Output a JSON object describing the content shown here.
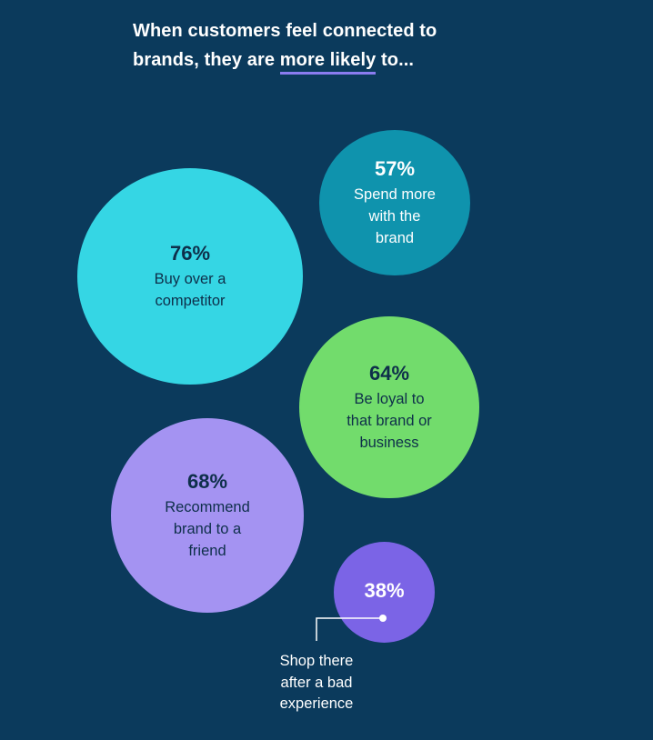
{
  "title": {
    "line1": "When customers feel connected to",
    "line2_prefix": "brands, they are ",
    "line2_highlight": "more likely",
    "line2_suffix": " to..."
  },
  "colors": {
    "background": "#0b3a5c",
    "buy": "#35d6e4",
    "spend": "#0f93ad",
    "loyal": "#72dc6c",
    "recommend": "#a493f2",
    "shop": "#7b64e6",
    "highlight_underline": "#8b7cf0"
  },
  "chart_data": {
    "type": "bubble",
    "title": "When customers feel connected to brands, they are more likely to...",
    "unit": "%",
    "items": [
      {
        "label": "Buy over a competitor",
        "value": 76,
        "value_text": "76%"
      },
      {
        "label": "Spend more with the brand",
        "value": 57,
        "value_text": "57%"
      },
      {
        "label": "Be loyal to that brand or business",
        "value": 64,
        "value_text": "64%"
      },
      {
        "label": "Recommend brand to a friend",
        "value": 68,
        "value_text": "68%"
      },
      {
        "label": "Shop there after a bad experience",
        "value": 38,
        "value_text": "38%"
      }
    ]
  },
  "bubbles": {
    "buy": {
      "value": "76%",
      "label": "Buy over a\ncompetitor"
    },
    "spend": {
      "value": "57%",
      "label": "Spend more\nwith the\nbrand"
    },
    "loyal": {
      "value": "64%",
      "label": "Be loyal to\nthat brand or\nbusiness"
    },
    "recommend": {
      "value": "68%",
      "label": "Recommend\nbrand to a\nfriend"
    },
    "shop": {
      "value": "38%"
    }
  },
  "annotation": {
    "shop_label": "Shop there\nafter a bad\nexperience"
  }
}
